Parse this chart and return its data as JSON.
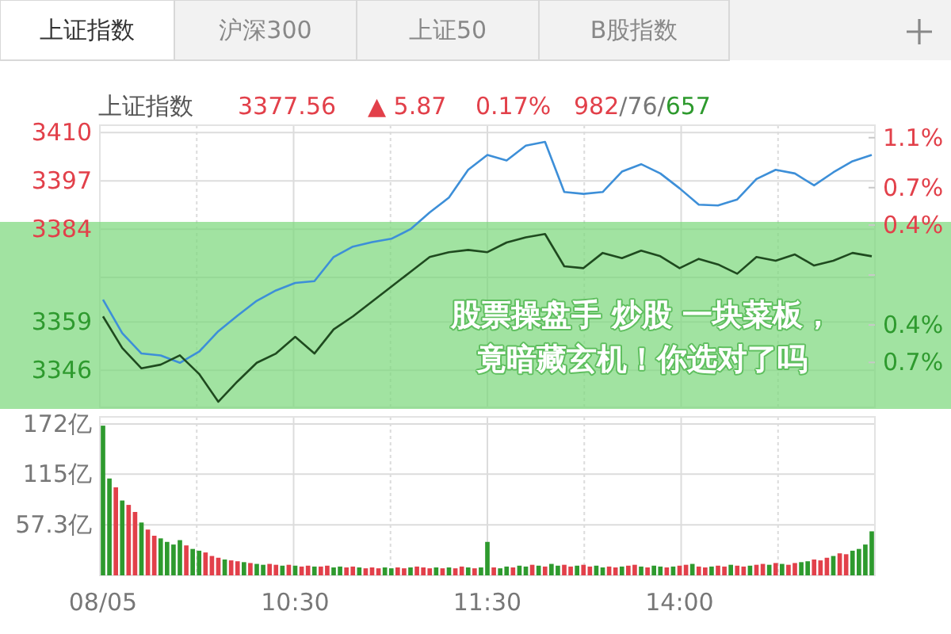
{
  "chart_data": [
    {
      "type": "line",
      "annotations": [
        "上证指数",
        "沪深300",
        "上证50",
        "B股指数",
        "上证指数",
        "3377.56",
        "▲ 5.87",
        "0.17%",
        "982",
        "/76/",
        "657",
        "股票操盘手 炒股 一块菜板，竟暗藏玄机！你选对了吗"
      ],
      "categories": [
        null,
        null,
        null,
        null,
        null,
        null,
        null,
        null,
        null,
        null,
        null,
        null,
        null,
        null,
        null,
        null,
        null,
        null,
        null,
        null,
        null,
        null,
        null,
        null,
        null,
        null,
        null,
        null,
        null,
        null,
        null,
        null,
        null,
        null,
        null,
        null,
        null,
        null,
        null,
        null,
        null
      ],
      "ylim": [
        3336,
        3412
      ],
      "yticks": [
        3346,
        3359,
        {
          "value": 3371,
          "label": null
        },
        3384,
        3397,
        3410
      ],
      "y2lim": [
        -1.06,
        1.2
      ],
      "y2ticks": [
        {
          "value": -0.7,
          "label": "0.7%"
        },
        {
          "value": -0.4,
          "label": "0.4%"
        },
        {
          "value": 0,
          "label": null
        },
        {
          "value": 0.4,
          "label": "0.4%"
        },
        {
          "value": 0.7,
          "label": "0.7%"
        },
        {
          "value": 1.1,
          "label": "1.1%"
        }
      ],
      "grid": true,
      "marker": "none",
      "tick_labels": "y",
      "series": [
        {
          "color": "#3d8fd8",
          "values": [
            3365,
            3356,
            3350.5,
            3350,
            3348,
            3351,
            3356.5,
            3360.7,
            3364.7,
            3367.5,
            3369.5,
            3370,
            3376.5,
            3379.3,
            3380.5,
            3381.4,
            3384,
            3388.5,
            3392.5,
            3400,
            3404,
            3402.5,
            3406.5,
            3407.5,
            3394,
            3393.5,
            3394,
            3399.5,
            3401.5,
            3399,
            3395,
            3390.6,
            3390.4,
            3392,
            3397.5,
            3400,
            3399,
            3395.8,
            3399.3,
            3402.3,
            3404
          ]
        },
        {
          "color": "#1f4a1f",
          "values": [
            3360.5,
            3352,
            3346.5,
            3347.5,
            3350,
            3345,
            3337.5,
            3343,
            3348,
            3350.5,
            3355,
            3350.5,
            3357,
            3360.5,
            3364.5,
            3368.5,
            3372.5,
            3376.5,
            3377.8,
            3378.4,
            3377.8,
            3380.4,
            3381.8,
            3382.7,
            3374,
            3373.5,
            3377.6,
            3376.2,
            3378.2,
            3376.7,
            3373.5,
            3376,
            3374.5,
            3372,
            3376.5,
            3375.5,
            3377.2,
            3374.2,
            3375.5,
            3377.6,
            3376.7
          ]
        }
      ]
    },
    {
      "type": "bar",
      "categories": [
        "08/05",
        null,
        null,
        null,
        null,
        null,
        null,
        null,
        null,
        null,
        null,
        null,
        null,
        null,
        null,
        null,
        null,
        null,
        null,
        null,
        null,
        null,
        null,
        null,
        null,
        null,
        null,
        null,
        null,
        null,
        "10:30",
        null,
        null,
        null,
        null,
        null,
        null,
        null,
        null,
        null,
        null,
        null,
        null,
        null,
        null,
        null,
        null,
        null,
        null,
        null,
        null,
        null,
        null,
        null,
        null,
        null,
        null,
        null,
        null,
        null,
        "11:30",
        null,
        null,
        null,
        null,
        null,
        null,
        null,
        null,
        null,
        null,
        null,
        null,
        null,
        null,
        null,
        null,
        null,
        null,
        null,
        null,
        null,
        null,
        null,
        null,
        null,
        null,
        null,
        null,
        null,
        "14:00",
        null,
        null,
        null,
        null,
        null,
        null,
        null,
        null,
        null,
        null,
        null,
        null,
        null,
        null,
        null,
        null,
        null,
        null,
        null,
        null,
        null,
        null,
        null,
        null,
        null,
        null,
        null,
        null,
        null,
        null
      ],
      "ylim": [
        0,
        180
      ],
      "yticks": [
        {
          "value": 57.3,
          "label": "57.3亿"
        },
        {
          "value": 115,
          "label": "115亿"
        },
        {
          "value": 172,
          "label": "172亿"
        }
      ],
      "grid": true,
      "values": [
        170,
        110,
        100,
        85,
        80,
        72,
        60,
        52,
        45,
        42,
        38,
        35,
        40,
        34,
        30,
        28,
        26,
        22,
        20,
        18,
        17,
        16,
        15,
        14,
        13,
        12,
        13,
        12,
        11,
        12,
        11,
        10,
        11,
        10,
        10,
        11,
        9,
        10,
        9,
        10,
        9,
        8,
        9,
        8,
        9,
        8,
        9,
        8,
        9,
        10,
        9,
        8,
        9,
        8,
        9,
        8,
        10,
        9,
        8,
        9,
        38,
        9,
        8,
        10,
        9,
        11,
        10,
        12,
        11,
        10,
        13,
        11,
        12,
        10,
        11,
        12,
        10,
        11,
        9,
        10,
        9,
        10,
        11,
        12,
        10,
        9,
        11,
        10,
        9,
        10,
        11,
        12,
        13,
        10,
        9,
        10,
        11,
        10,
        12,
        11,
        10,
        11,
        12,
        13,
        12,
        14,
        13,
        12,
        14,
        15,
        16,
        18,
        17,
        20,
        22,
        25,
        24,
        28,
        30,
        35,
        50
      ],
      "colors": [
        "#2e9a2e",
        "#2e9a2e",
        "#e2404a",
        "#2e9a2e",
        "#e2404a",
        "#e2404a",
        "#2e9a2e",
        "#e2404a",
        "#e2404a",
        "#2e9a2e",
        "#2e9a2e",
        "#2e9a2e",
        "#2e9a2e",
        "#e2404a",
        "#2e9a2e",
        "#2e9a2e",
        "#e2404a",
        "#e2404a",
        "#e2404a",
        "#2e9a2e",
        "#e2404a",
        "#e2404a",
        "#2e9a2e",
        "#e2404a",
        "#2e9a2e",
        "#2e9a2e",
        "#e2404a",
        "#e2404a",
        "#2e9a2e",
        "#e2404a",
        "#2e9a2e",
        "#e2404a",
        "#e2404a",
        "#2e9a2e",
        "#e2404a",
        "#e2404a",
        "#2e9a2e",
        "#2e9a2e",
        "#e2404a",
        "#e2404a",
        "#2e9a2e",
        "#e2404a",
        "#e2404a",
        "#e2404a",
        "#2e9a2e",
        "#2e9a2e",
        "#e2404a",
        "#e2404a",
        "#2e9a2e",
        "#e2404a",
        "#e2404a",
        "#e2404a",
        "#2e9a2e",
        "#e2404a",
        "#2e9a2e",
        "#e2404a",
        "#e2404a",
        "#2e9a2e",
        "#e2404a",
        "#2e9a2e",
        "#2e9a2e",
        "#e2404a",
        "#2e9a2e",
        "#2e9a2e",
        "#e2404a",
        "#2e9a2e",
        "#2e9a2e",
        "#e2404a",
        "#2e9a2e",
        "#e2404a",
        "#2e9a2e",
        "#2e9a2e",
        "#e2404a",
        "#e2404a",
        "#2e9a2e",
        "#e2404a",
        "#e2404a",
        "#2e9a2e",
        "#2e9a2e",
        "#e2404a",
        "#e2404a",
        "#2e9a2e",
        "#e2404a",
        "#e2404a",
        "#2e9a2e",
        "#e2404a",
        "#2e9a2e",
        "#2e9a2e",
        "#e2404a",
        "#2e9a2e",
        "#e2404a",
        "#e2404a",
        "#2e9a2e",
        "#e2404a",
        "#e2404a",
        "#2e9a2e",
        "#e2404a",
        "#e2404a",
        "#2e9a2e",
        "#e2404a",
        "#e2404a",
        "#2e9a2e",
        "#e2404a",
        "#e2404a",
        "#2e9a2e",
        "#e2404a",
        "#2e9a2e",
        "#e2404a",
        "#e2404a",
        "#2e9a2e",
        "#2e9a2e",
        "#e2404a",
        "#e2404a",
        "#e2404a",
        "#2e9a2e",
        "#e2404a",
        "#e2404a",
        "#2e9a2e",
        "#2e9a2e",
        "#2e9a2e",
        "#2e9a2e"
      ]
    }
  ]
}
